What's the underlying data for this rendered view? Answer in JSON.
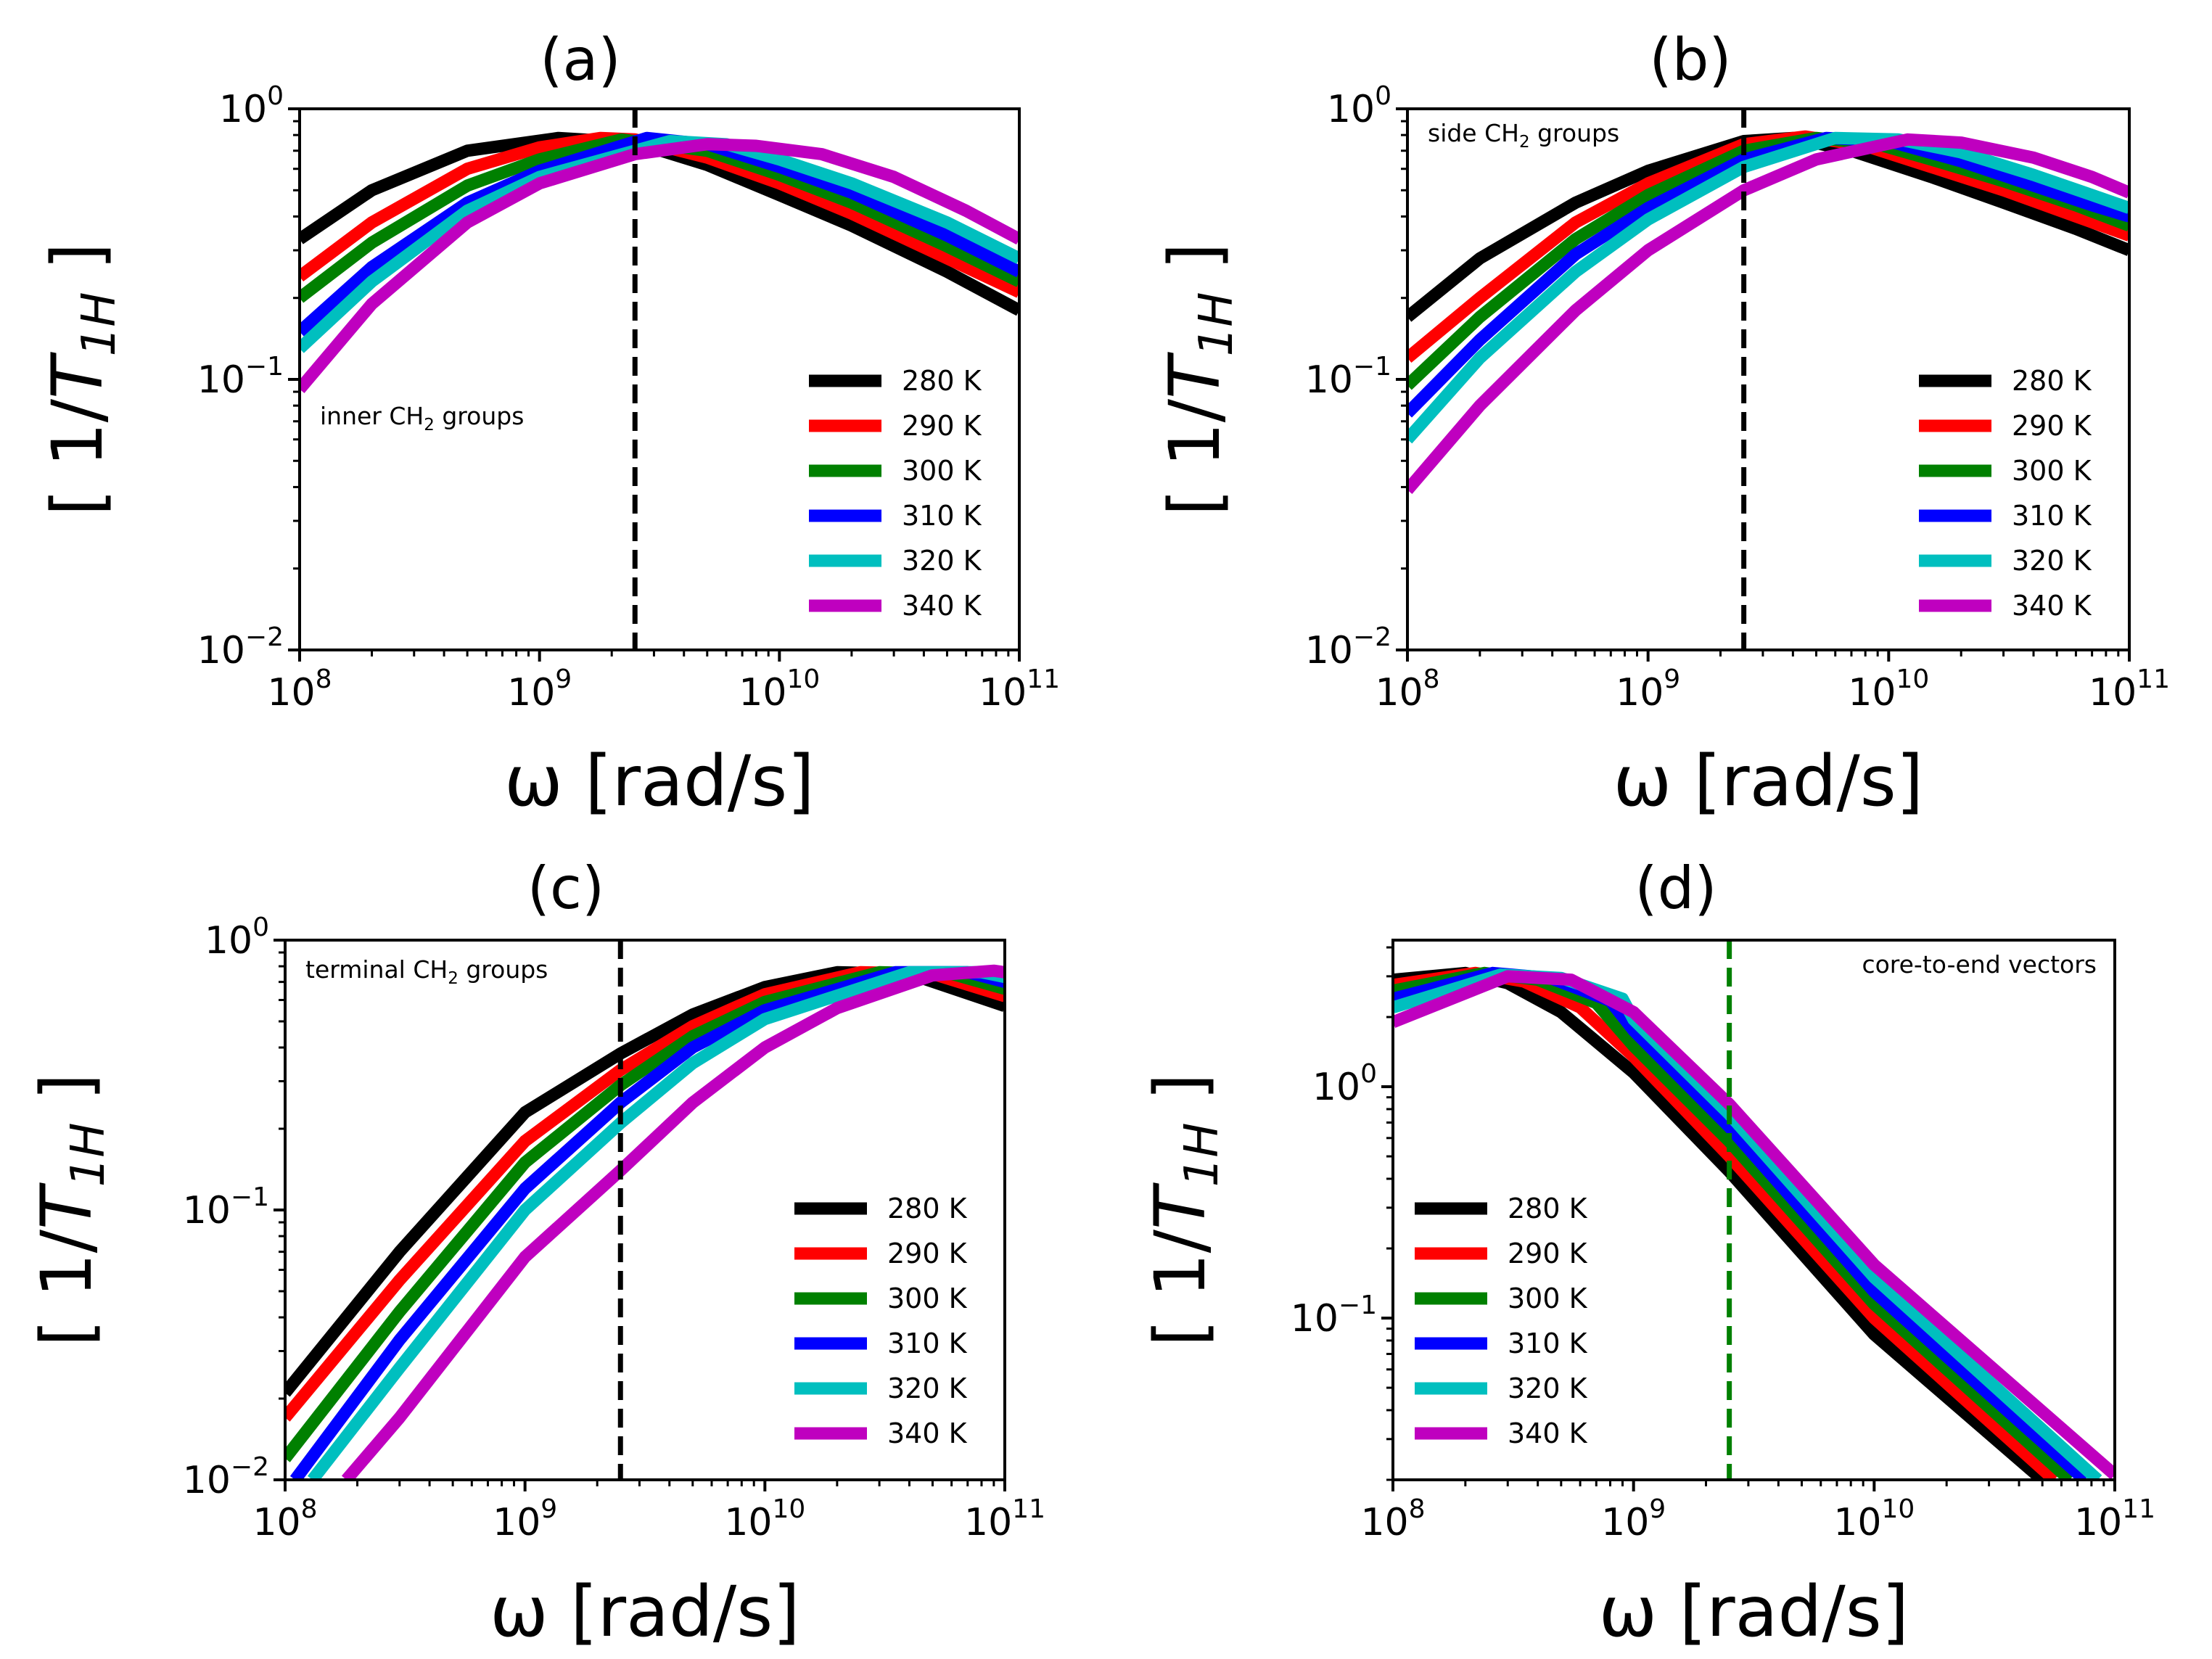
{
  "chart_data": [
    {
      "type": "line",
      "title": "(a)",
      "annotation": {
        "text": "inner CH",
        "subscript": "2",
        "suffix": " groups"
      },
      "xlabel": "ω [rad/s]",
      "ylabel": {
        "open": "[ 1/",
        "italic": "T",
        "sub": "1H",
        "close": " ]"
      },
      "xscale": "log",
      "yscale": "log",
      "xlim": [
        100000000.0,
        100000000000.0
      ],
      "ylim": [
        0.01,
        1
      ],
      "xticks": [
        {
          "base": "10",
          "exp": "8"
        },
        {
          "base": "10",
          "exp": "9"
        },
        {
          "base": "10",
          "exp": "10"
        },
        {
          "base": "10",
          "exp": "11"
        }
      ],
      "yticks": [
        {
          "base": "10",
          "exp": "−2"
        },
        {
          "base": "10",
          "exp": "−1"
        },
        {
          "base": "10",
          "exp": "0"
        }
      ],
      "vline": {
        "x": 2500000000.0,
        "color": "#000000"
      },
      "legend_position": "lower-right",
      "series": [
        {
          "name": "280 K",
          "color": "#000000",
          "x": [
            100000000.0,
            200000000.0,
            500000000.0,
            1200000000.0,
            2500000000.0,
            5000000000.0,
            10000000000.0,
            20000000000.0,
            50000000000.0,
            100000000000.0
          ],
          "y": [
            0.33,
            0.5,
            0.7,
            0.78,
            0.75,
            0.62,
            0.48,
            0.37,
            0.25,
            0.18
          ]
        },
        {
          "name": "290 K",
          "color": "#ff0000",
          "x": [
            100000000.0,
            200000000.0,
            500000000.0,
            1000000000.0,
            1800000000.0,
            2500000000.0,
            5000000000.0,
            10000000000.0,
            20000000000.0,
            50000000000.0,
            100000000000.0
          ],
          "y": [
            0.24,
            0.38,
            0.6,
            0.72,
            0.78,
            0.77,
            0.66,
            0.53,
            0.41,
            0.28,
            0.21
          ]
        },
        {
          "name": "300 K",
          "color": "#008000",
          "x": [
            100000000.0,
            200000000.0,
            500000000.0,
            1000000000.0,
            2200000000.0,
            5000000000.0,
            10000000000.0,
            20000000000.0,
            50000000000.0,
            100000000000.0
          ],
          "y": [
            0.2,
            0.32,
            0.52,
            0.65,
            0.77,
            0.7,
            0.57,
            0.45,
            0.31,
            0.23
          ]
        },
        {
          "name": "310 K",
          "color": "#0000ff",
          "x": [
            100000000.0,
            200000000.0,
            500000000.0,
            1000000000.0,
            2800000000.0,
            5000000000.0,
            10000000000.0,
            20000000000.0,
            50000000000.0,
            100000000000.0
          ],
          "y": [
            0.15,
            0.26,
            0.45,
            0.59,
            0.78,
            0.74,
            0.61,
            0.49,
            0.34,
            0.25
          ]
        },
        {
          "name": "320 K",
          "color": "#00bfbf",
          "x": [
            100000000.0,
            200000000.0,
            500000000.0,
            1000000000.0,
            3500000000.0,
            6000000000.0,
            10000000000.0,
            20000000000.0,
            50000000000.0,
            100000000000.0
          ],
          "y": [
            0.13,
            0.23,
            0.42,
            0.56,
            0.76,
            0.74,
            0.65,
            0.53,
            0.38,
            0.28
          ]
        },
        {
          "name": "340 K",
          "color": "#bf00bf",
          "x": [
            100000000.0,
            200000000.0,
            500000000.0,
            1000000000.0,
            2500000000.0,
            5000000000.0,
            8000000000.0,
            15000000000.0,
            30000000000.0,
            60000000000.0,
            100000000000.0
          ],
          "y": [
            0.092,
            0.19,
            0.38,
            0.53,
            0.68,
            0.74,
            0.73,
            0.68,
            0.56,
            0.42,
            0.33
          ]
        }
      ]
    },
    {
      "type": "line",
      "title": "(b)",
      "annotation": {
        "text": "side CH",
        "subscript": "2",
        "suffix": " groups"
      },
      "xlabel": "ω [rad/s]",
      "ylabel": {
        "open": "[ 1/",
        "italic": "T",
        "sub": "1H",
        "close": " ]"
      },
      "xscale": "log",
      "yscale": "log",
      "xlim": [
        100000000.0,
        100000000000.0
      ],
      "ylim": [
        0.01,
        1
      ],
      "xticks": [
        {
          "base": "10",
          "exp": "8"
        },
        {
          "base": "10",
          "exp": "9"
        },
        {
          "base": "10",
          "exp": "10"
        },
        {
          "base": "10",
          "exp": "11"
        }
      ],
      "yticks": [
        {
          "base": "10",
          "exp": "−2"
        },
        {
          "base": "10",
          "exp": "−1"
        },
        {
          "base": "10",
          "exp": "0"
        }
      ],
      "vline": {
        "x": 2500000000.0,
        "color": "#000000"
      },
      "legend_position": "lower-right",
      "series": [
        {
          "name": "280 K",
          "color": "#000000",
          "x": [
            100000000.0,
            200000000.0,
            500000000.0,
            1000000000.0,
            2500000000.0,
            4000000000.0,
            7000000000.0,
            15000000000.0,
            30000000000.0,
            60000000000.0,
            100000000000.0
          ],
          "y": [
            0.17,
            0.28,
            0.45,
            0.59,
            0.76,
            0.78,
            0.7,
            0.56,
            0.45,
            0.36,
            0.3
          ]
        },
        {
          "name": "290 K",
          "color": "#ff0000",
          "x": [
            100000000.0,
            200000000.0,
            500000000.0,
            1000000000.0,
            2500000000.0,
            4500000000.0,
            8000000000.0,
            15000000000.0,
            30000000000.0,
            60000000000.0,
            100000000000.0
          ],
          "y": [
            0.12,
            0.2,
            0.38,
            0.53,
            0.74,
            0.79,
            0.73,
            0.61,
            0.5,
            0.4,
            0.34
          ]
        },
        {
          "name": "300 K",
          "color": "#008000",
          "x": [
            100000000.0,
            200000000.0,
            500000000.0,
            1000000000.0,
            2500000000.0,
            5000000000.0,
            9000000000.0,
            15000000000.0,
            30000000000.0,
            60000000000.0,
            100000000000.0
          ],
          "y": [
            0.095,
            0.17,
            0.33,
            0.48,
            0.7,
            0.78,
            0.74,
            0.65,
            0.54,
            0.44,
            0.37
          ]
        },
        {
          "name": "310 K",
          "color": "#0000ff",
          "x": [
            100000000.0,
            200000000.0,
            500000000.0,
            1000000000.0,
            2500000000.0,
            5500000000.0,
            10000000000.0,
            20000000000.0,
            40000000000.0,
            70000000000.0,
            100000000000.0
          ],
          "y": [
            0.075,
            0.14,
            0.29,
            0.43,
            0.65,
            0.78,
            0.76,
            0.64,
            0.52,
            0.44,
            0.4
          ]
        },
        {
          "name": "320 K",
          "color": "#00bfbf",
          "x": [
            100000000.0,
            200000000.0,
            500000000.0,
            1000000000.0,
            2500000000.0,
            6000000000.0,
            11000000000.0,
            20000000000.0,
            40000000000.0,
            70000000000.0,
            100000000000.0
          ],
          "y": [
            0.06,
            0.12,
            0.25,
            0.39,
            0.61,
            0.78,
            0.77,
            0.69,
            0.57,
            0.48,
            0.43
          ]
        },
        {
          "name": "340 K",
          "color": "#bf00bf",
          "x": [
            100000000.0,
            200000000.0,
            500000000.0,
            1000000000.0,
            2500000000.0,
            5000000000.0,
            12000000000.0,
            20000000000.0,
            40000000000.0,
            70000000000.0,
            100000000000.0
          ],
          "y": [
            0.039,
            0.08,
            0.18,
            0.3,
            0.5,
            0.65,
            0.77,
            0.75,
            0.66,
            0.56,
            0.49
          ]
        }
      ]
    },
    {
      "type": "line",
      "title": "(c)",
      "annotation": {
        "text": "terminal CH",
        "subscript": "2",
        "suffix": " groups"
      },
      "xlabel": "ω [rad/s]",
      "ylabel": {
        "open": "[ 1/",
        "italic": "T",
        "sub": "1H",
        "close": " ]"
      },
      "xscale": "log",
      "yscale": "log",
      "xlim": [
        100000000.0,
        100000000000.0
      ],
      "ylim": [
        0.01,
        1
      ],
      "xticks": [
        {
          "base": "10",
          "exp": "8"
        },
        {
          "base": "10",
          "exp": "9"
        },
        {
          "base": "10",
          "exp": "10"
        },
        {
          "base": "10",
          "exp": "11"
        }
      ],
      "yticks": [
        {
          "base": "10",
          "exp": "−2"
        },
        {
          "base": "10",
          "exp": "−1"
        },
        {
          "base": "10",
          "exp": "0"
        }
      ],
      "vline": {
        "x": 2500000000.0,
        "color": "#000000"
      },
      "legend_position": "lower-right",
      "series": [
        {
          "name": "280 K",
          "color": "#000000",
          "x": [
            100000000.0,
            300000000.0,
            1000000000.0,
            2500000000.0,
            5000000000.0,
            10000000000.0,
            20000000000.0,
            40000000000.0,
            100000000000.0
          ],
          "y": [
            0.021,
            0.07,
            0.23,
            0.38,
            0.53,
            0.67,
            0.76,
            0.75,
            0.57
          ]
        },
        {
          "name": "290 K",
          "color": "#ff0000",
          "x": [
            100000000.0,
            300000000.0,
            1000000000.0,
            2500000000.0,
            5000000000.0,
            10000000000.0,
            25000000000.0,
            50000000000.0,
            100000000000.0
          ],
          "y": [
            0.017,
            0.055,
            0.18,
            0.33,
            0.48,
            0.63,
            0.76,
            0.75,
            0.62
          ]
        },
        {
          "name": "300 K",
          "color": "#008000",
          "x": [
            100000000.0,
            300000000.0,
            1000000000.0,
            2500000000.0,
            5000000000.0,
            10000000000.0,
            30000000000.0,
            60000000000.0,
            100000000000.0
          ],
          "y": [
            0.012,
            0.042,
            0.15,
            0.29,
            0.44,
            0.59,
            0.76,
            0.75,
            0.66
          ]
        },
        {
          "name": "310 K",
          "color": "#0000ff",
          "x": [
            110000000.0,
            300000000.0,
            1000000000.0,
            2500000000.0,
            5000000000.0,
            10000000000.0,
            35000000000.0,
            70000000000.0,
            100000000000.0
          ],
          "y": [
            0.01,
            0.033,
            0.12,
            0.25,
            0.4,
            0.55,
            0.76,
            0.76,
            0.7
          ]
        },
        {
          "name": "320 K",
          "color": "#00bfbf",
          "x": [
            130000000.0,
            300000000.0,
            1000000000.0,
            2500000000.0,
            5000000000.0,
            10000000000.0,
            40000000000.0,
            80000000000.0,
            100000000000.0
          ],
          "y": [
            0.01,
            0.026,
            0.1,
            0.21,
            0.35,
            0.51,
            0.76,
            0.76,
            0.73
          ]
        },
        {
          "name": "340 K",
          "color": "#bf00bf",
          "x": [
            180000000.0,
            300000000.0,
            1000000000.0,
            2500000000.0,
            5000000000.0,
            10000000000.0,
            20000000000.0,
            50000000000.0,
            90000000000.0,
            100000000000.0
          ],
          "y": [
            0.01,
            0.017,
            0.067,
            0.14,
            0.25,
            0.4,
            0.56,
            0.74,
            0.77,
            0.76
          ]
        }
      ]
    },
    {
      "type": "line",
      "title": "(d)",
      "annotation": {
        "text": "core-to-end vectors",
        "subscript": "",
        "suffix": ""
      },
      "xlabel": "ω [rad/s]",
      "ylabel": {
        "open": "[ 1/",
        "italic": "T",
        "sub": "1H",
        "close": " ]"
      },
      "xscale": "log",
      "yscale": "log",
      "xlim": [
        100000000.0,
        100000000000.0
      ],
      "ylim": [
        0.02,
        4.3
      ],
      "xticks": [
        {
          "base": "10",
          "exp": "8"
        },
        {
          "base": "10",
          "exp": "9"
        },
        {
          "base": "10",
          "exp": "10"
        },
        {
          "base": "10",
          "exp": "11"
        }
      ],
      "yticks": [
        {
          "base": "10",
          "exp": "−1"
        },
        {
          "base": "10",
          "exp": "0"
        }
      ],
      "vline": {
        "x": 2500000000.0,
        "color": "#008000"
      },
      "legend_position": "lower-left",
      "series": [
        {
          "name": "280 K",
          "color": "#000000",
          "x": [
            100000000.0,
            200000000.0,
            300000000.0,
            500000000.0,
            1000000000.0,
            2500000000.0,
            10000000000.0,
            50000000000.0
          ],
          "y": [
            2.9,
            3.1,
            2.8,
            2.1,
            1.15,
            0.43,
            0.085,
            0.02
          ]
        },
        {
          "name": "290 K",
          "color": "#ff0000",
          "x": [
            100000000.0,
            220000000.0,
            350000000.0,
            600000000.0,
            1000000000.0,
            2500000000.0,
            10000000000.0,
            56000000000.0
          ],
          "y": [
            2.75,
            3.1,
            2.85,
            2.2,
            1.35,
            0.5,
            0.1,
            0.02
          ]
        },
        {
          "name": "300 K",
          "color": "#008000",
          "x": [
            100000000.0,
            240000000.0,
            400000000.0,
            700000000.0,
            1000000000.0,
            2500000000.0,
            10000000000.0,
            65000000000.0
          ],
          "y": [
            2.6,
            3.1,
            2.9,
            2.3,
            1.5,
            0.58,
            0.115,
            0.02
          ]
        },
        {
          "name": "310 K",
          "color": "#0000ff",
          "x": [
            100000000.0,
            260000000.0,
            450000000.0,
            800000000.0,
            1000000000.0,
            2500000000.0,
            10000000000.0,
            75000000000.0
          ],
          "y": [
            2.4,
            3.1,
            2.95,
            2.35,
            1.75,
            0.67,
            0.13,
            0.02
          ]
        },
        {
          "name": "320 K",
          "color": "#00bfbf",
          "x": [
            100000000.0,
            280000000.0,
            500000000.0,
            900000000.0,
            1000000000.0,
            2500000000.0,
            10000000000.0,
            85000000000.0
          ],
          "y": [
            2.2,
            3.05,
            2.95,
            2.4,
            1.95,
            0.76,
            0.15,
            0.02
          ]
        },
        {
          "name": "340 K",
          "color": "#bf00bf",
          "x": [
            100000000.0,
            300000000.0,
            550000000.0,
            1000000000.0,
            2500000000.0,
            10000000000.0,
            100000000000.0
          ],
          "y": [
            1.9,
            3.0,
            2.9,
            2.1,
            0.84,
            0.17,
            0.021
          ]
        }
      ]
    }
  ]
}
